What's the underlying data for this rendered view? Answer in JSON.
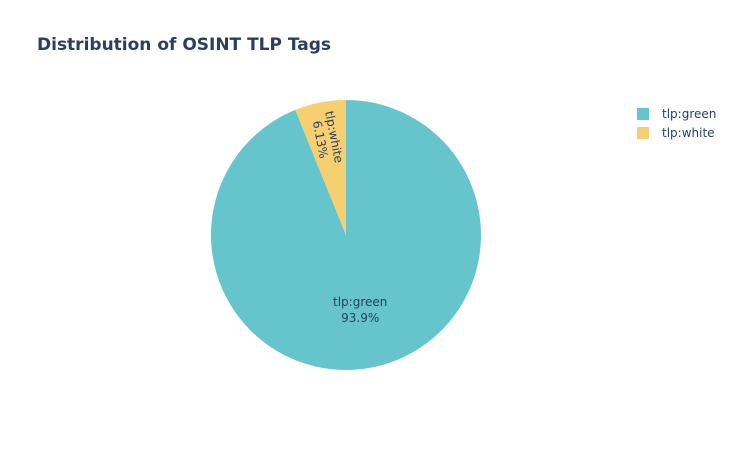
{
  "chart_data": {
    "type": "pie",
    "title": "Distribution of OSINT TLP Tags",
    "labels": [
      "tlp:green",
      "tlp:white"
    ],
    "values": [
      93.87,
      6.13
    ],
    "percent_labels": [
      "93.9%",
      "6.13%"
    ],
    "colors": [
      "#66c5cc",
      "#f6cf71"
    ],
    "legend_position": "top-right",
    "direction": "clockwise",
    "start": "top"
  }
}
